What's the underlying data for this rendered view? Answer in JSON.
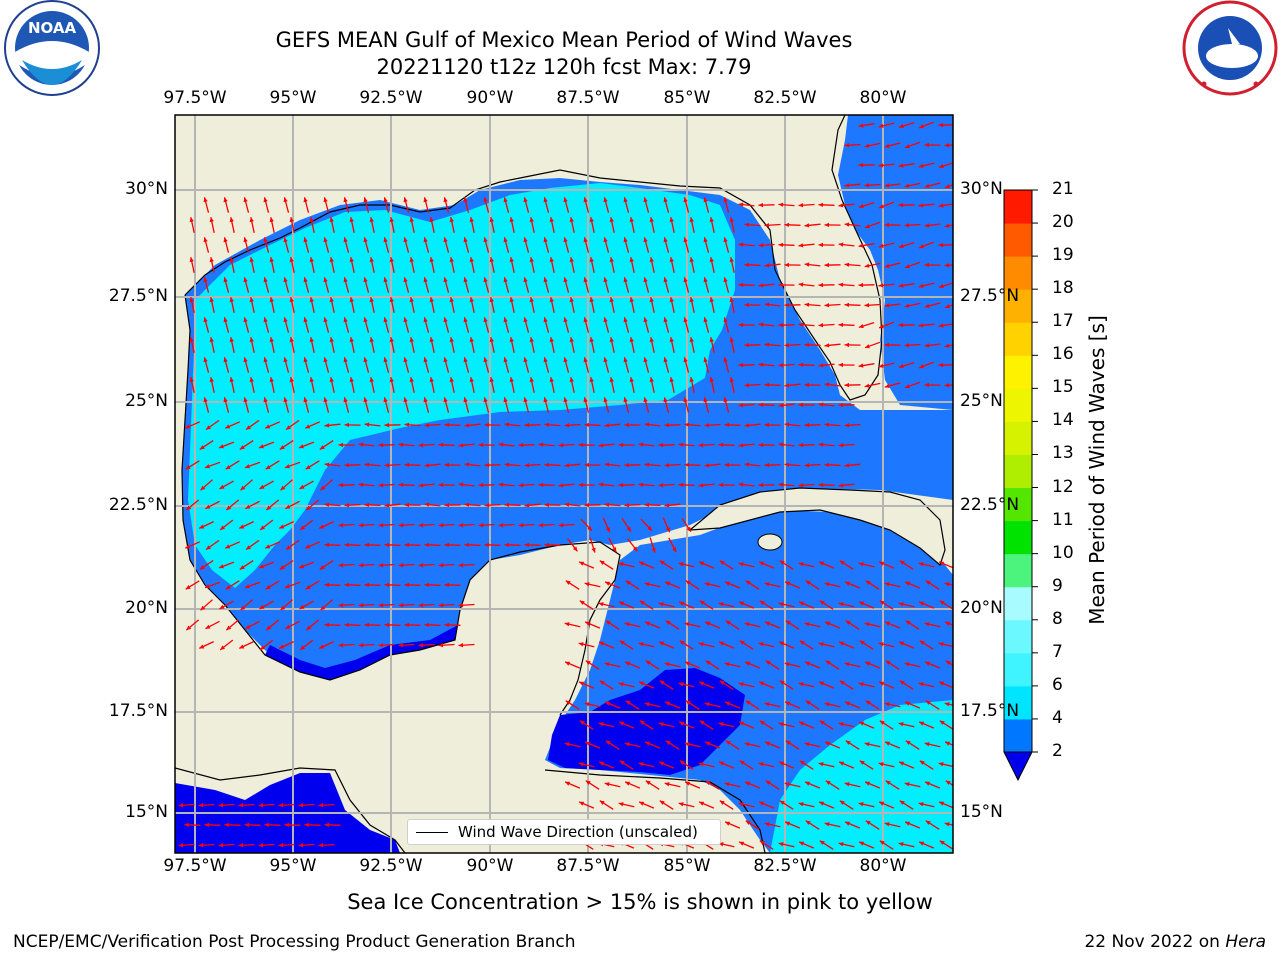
{
  "title_line1": "GEFS MEAN Gulf of Mexico Mean Period of Wind Waves",
  "title_line2": "20221120 t12z 120h fcst   Max: 7.79",
  "lon_ticks": [
    "97.5°W",
    "95°W",
    "92.5°W",
    "90°W",
    "87.5°W",
    "85°W",
    "82.5°W",
    "80°W"
  ],
  "lat_ticks": [
    "30°N",
    "27.5°N",
    "25°N",
    "22.5°N",
    "20°N",
    "17.5°N",
    "15°N"
  ],
  "colorbar": {
    "label": "Mean Period of Wind Waves [s]",
    "levels": [
      "2",
      "4",
      "6",
      "7",
      "8",
      "9",
      "10",
      "11",
      "12",
      "13",
      "14",
      "15",
      "16",
      "17",
      "18",
      "19",
      "20",
      "21"
    ],
    "colors": [
      "#0077ff",
      "#00e5ff",
      "#3ff4ff",
      "#6bf8ff",
      "#a8fbff",
      "#4cf37c",
      "#00e200",
      "#55e600",
      "#b0ee00",
      "#d6f200",
      "#eef500",
      "#fff200",
      "#ffd200",
      "#ffb100",
      "#ff8c00",
      "#ff5a00",
      "#ff1a00"
    ],
    "under_color": "#0000ee"
  },
  "colors": {
    "land": "#efeedb",
    "ocean_low": "#0000ee",
    "ocean_mid": "#1e78ff",
    "ocean_high": "#00eeff",
    "arrows": "#ff0000",
    "grid": "#b5b5b5"
  },
  "legend_label": "Wind Wave Direction (unscaled)",
  "caption": "Sea Ice Concentration > 15% is shown in pink to yellow",
  "footer_left": "NCEP/EMC/Verification Post Processing Product Generation Branch",
  "footer_right_date": "22 Nov 2022 on ",
  "footer_right_host": "Hera",
  "logos": {
    "left": "noaa-logo",
    "right": "nws-logo"
  },
  "logo_text": {
    "noaa": "NOAA",
    "nws": "NATIONAL WEATHER SERVICE"
  }
}
